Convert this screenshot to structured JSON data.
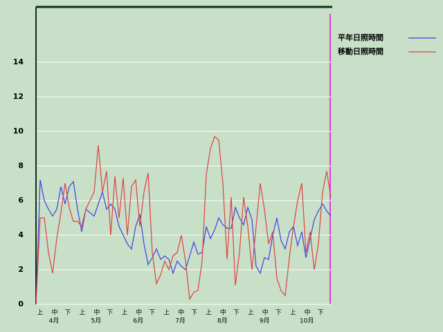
{
  "chart_data": {
    "type": "line",
    "ylim": [
      0,
      17.2
    ],
    "yticks": [
      0,
      2,
      4,
      6,
      8,
      10,
      12,
      14
    ],
    "grid": true,
    "period_labels": [
      "上",
      "中",
      "下",
      "上",
      "中",
      "下",
      "上",
      "中",
      "下",
      "上",
      "中",
      "下",
      "上",
      "中",
      "下",
      "上",
      "中",
      "下",
      "上",
      "中",
      "下"
    ],
    "month_labels": [
      "4月",
      "5月",
      "6月",
      "7月",
      "8月",
      "9月",
      "10月"
    ],
    "legend": "top-right",
    "series": [
      {
        "name": "平年日照時間",
        "color": "#4040e0",
        "values": [
          0,
          7.2,
          6,
          5.5,
          5.1,
          5.5,
          6.8,
          5.8,
          6.8,
          7.1,
          5.5,
          4.2,
          5.5,
          5.3,
          5.1,
          5.8,
          6.5,
          5.5,
          5.8,
          5.5,
          4.5,
          4,
          3.5,
          3.2,
          4.5,
          5.2,
          3.5,
          2.3,
          2.7,
          3.2,
          2.6,
          2.8,
          2.6,
          1.8,
          2.5,
          2.2,
          2,
          2.8,
          3.6,
          2.9,
          3,
          4.5,
          3.8,
          4.3,
          5,
          4.6,
          4.4,
          4.4,
          5.6,
          5,
          4.6,
          5.6,
          4.9,
          2.2,
          1.8,
          2.7,
          2.6,
          4,
          5,
          3.7,
          3.2,
          4.2,
          4.5,
          3.4,
          4.2,
          2.7,
          3.8,
          4.9,
          5.4,
          5.8,
          5.4,
          5.1
        ]
      },
      {
        "name": "移動日照時間",
        "color": "#e04040",
        "values": [
          0,
          5,
          5,
          3,
          1.8,
          3.8,
          5.3,
          7,
          5.6,
          4.8,
          4.8,
          4.5,
          5.5,
          6,
          6.5,
          9.2,
          6.5,
          7.7,
          4,
          7.4,
          5,
          7.3,
          4,
          6.8,
          7.2,
          4.5,
          6.5,
          7.6,
          3,
          1.2,
          1.7,
          2.5,
          2,
          2.8,
          3,
          4,
          2.5,
          0.3,
          0.7,
          0.8,
          2.5,
          7.5,
          9,
          9.7,
          9.5,
          7,
          2.6,
          6.2,
          1.1,
          3,
          6.2,
          4.5,
          2,
          4.5,
          7,
          5.5,
          3.5,
          4.2,
          1.5,
          0.8,
          0.5,
          2.7,
          4.5,
          6,
          7,
          3,
          4.2,
          2,
          3.5,
          6.5,
          7.7,
          6.2
        ]
      }
    ]
  }
}
